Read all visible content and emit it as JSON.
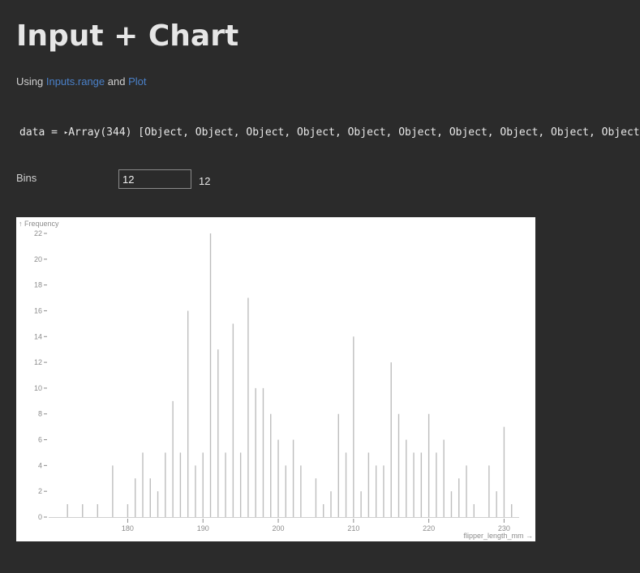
{
  "page": {
    "title": "Input + Chart",
    "subtitle_prefix": "Using ",
    "subtitle_link1": "Inputs.range",
    "subtitle_mid": " and ",
    "subtitle_link2": "Plot"
  },
  "data_cell": {
    "prefix": "data = ",
    "toggle": "▸",
    "value": "Array(344) [Object, Object, Object, Object, Object, Object, Object, Object, Object, Object"
  },
  "bins": {
    "label": "Bins",
    "input_value": "12",
    "display_value": "12"
  },
  "chart_data": {
    "type": "bar",
    "ylabel": "↑ Frequency",
    "xlabel": "flipper_length_mm →",
    "xlim": [
      169.5,
      232
    ],
    "ylim": [
      0,
      22
    ],
    "yticks": [
      0,
      2,
      4,
      6,
      8,
      10,
      12,
      14,
      16,
      18,
      20,
      22
    ],
    "xticks": [
      180,
      190,
      200,
      210,
      220,
      230
    ],
    "grid": false,
    "x": [
      172,
      174,
      176,
      178,
      180,
      181,
      182,
      183,
      184,
      185,
      186,
      187,
      188,
      189,
      190,
      191,
      192,
      193,
      194,
      195,
      196,
      197,
      198,
      199,
      200,
      201,
      202,
      203,
      205,
      206,
      207,
      208,
      209,
      210,
      211,
      212,
      213,
      214,
      215,
      216,
      217,
      218,
      219,
      220,
      221,
      222,
      223,
      224,
      225,
      226,
      228,
      229,
      230,
      231
    ],
    "values": [
      1,
      1,
      1,
      4,
      1,
      3,
      5,
      3,
      2,
      5,
      9,
      5,
      16,
      4,
      5,
      22,
      13,
      5,
      15,
      5,
      17,
      10,
      10,
      8,
      6,
      4,
      6,
      4,
      3,
      1,
      2,
      8,
      5,
      14,
      2,
      5,
      4,
      4,
      12,
      8,
      6,
      5,
      5,
      8,
      5,
      6,
      2,
      3,
      4,
      1,
      4,
      2,
      7,
      1
    ]
  }
}
